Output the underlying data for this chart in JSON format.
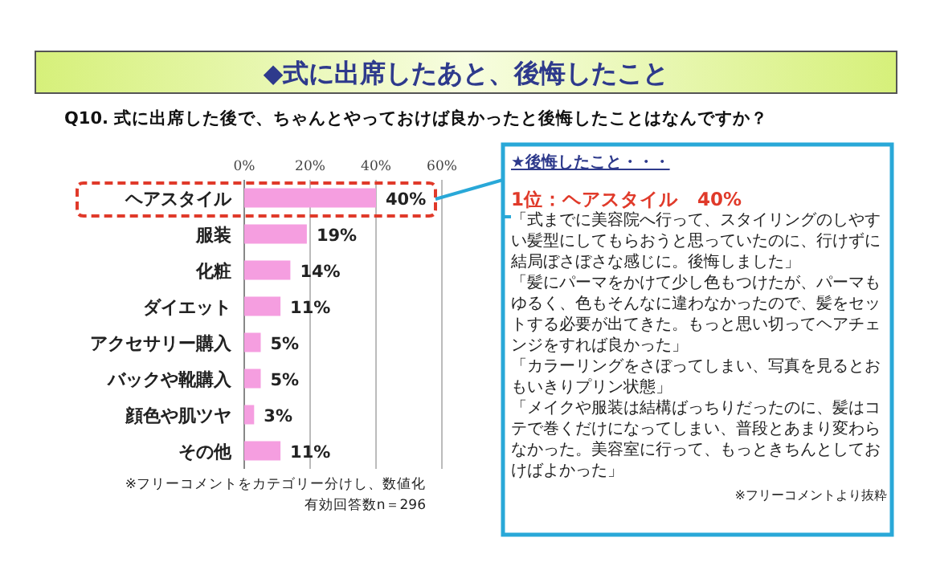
{
  "chart_data": {
    "type": "bar",
    "orientation": "horizontal",
    "title": "◆式に出席したあと、後悔したこと",
    "subtitle": "Q10. 式に出席した後で、ちゃんとやっておけば良かったと後悔したことはなんですか？",
    "categories": [
      "ヘアスタイル",
      "服装",
      "化粧",
      "ダイエット",
      "アクセサリー購入",
      "バックや靴購入",
      "顔色や肌ツヤ",
      "その他"
    ],
    "values": [
      40,
      19,
      14,
      11,
      5,
      5,
      3,
      11
    ],
    "value_labels": [
      "40%",
      "19%",
      "14%",
      "11%",
      "5%",
      "5%",
      "3%",
      "11%"
    ],
    "color": "#f59ee0",
    "xlim": [
      0,
      60
    ],
    "xticks": [
      {
        "value": 0,
        "label": "0%"
      },
      {
        "value": 20,
        "label": "20%"
      },
      {
        "value": 40,
        "label": "40%"
      },
      {
        "value": 60,
        "label": "60%"
      }
    ],
    "grid": "x",
    "annotations": [
      "※フリーコメントをカテゴリー分けし、数値化",
      "有効回答数n＝296",
      "★後悔したこと・・・",
      "1位：ヘアスタイル　40%",
      "「式までに美容院へ行って、スタイリングのしやすい髪型にしてもらおうと思っていたのに、行けずに結局ぼさぼさな感じに。後悔しました」",
      "「髪にパーマをかけて少し色もつけたが、パーマもゆるく、色もそんなに違わなかったので、髪をセットする必要が出てきた。もっと思い切ってヘアチェンジをすれば良かった」",
      "「カラーリングをさぼってしまい、写真を見るとおもいきりプリン状態」",
      "「メイクや服装は結構ばっちりだったのに、髪はコテで巻くだけになってしまい、普段とあまり変わらなかった。美容室に行って、もっときちんとしておけばよかった」",
      "※フリーコメントより抜粋"
    ]
  }
}
